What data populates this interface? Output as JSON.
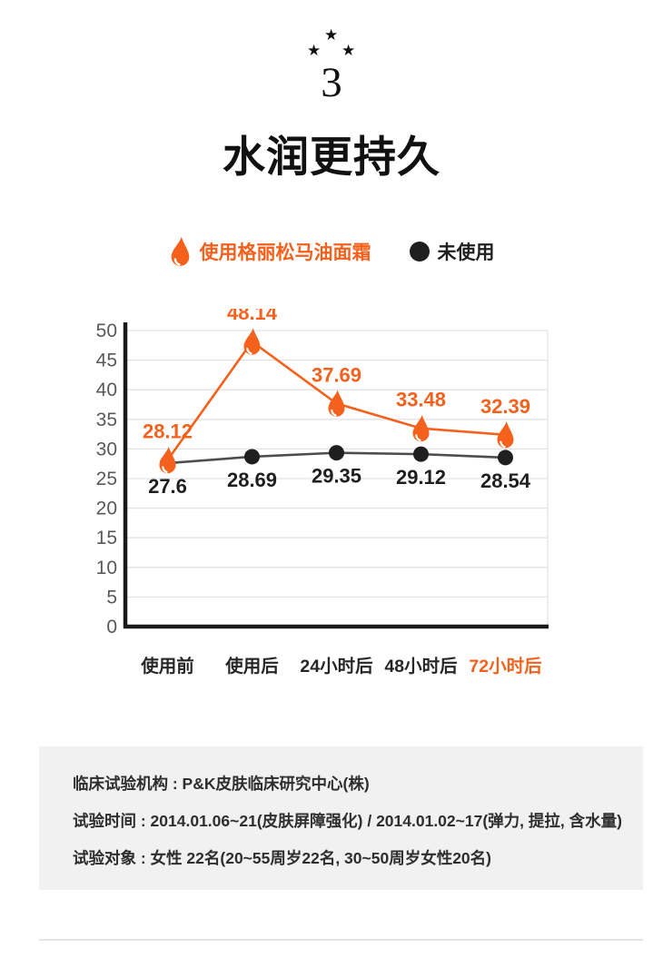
{
  "header": {
    "stars_icon": "★",
    "section_number": "3",
    "title": "水润更持久"
  },
  "legend": {
    "series1_label": "使用格丽松马油面霜",
    "series2_label": "未使用"
  },
  "chart_data": {
    "type": "line",
    "categories": [
      "使用前",
      "使用后",
      "24小时后",
      "48小时后",
      "72小时后"
    ],
    "series": [
      {
        "name": "使用格丽松马油面霜",
        "values": [
          28.12,
          48.14,
          37.69,
          33.48,
          32.39
        ],
        "color": "#f4611d",
        "label_color": "#f4611d",
        "marker": "droplet",
        "label_position": "above"
      },
      {
        "name": "未使用",
        "values": [
          27.6,
          28.69,
          29.35,
          29.12,
          28.54
        ],
        "color": "#4d4d4d",
        "label_color": "#1f1f1f",
        "marker": "circle",
        "label_position": "below"
      }
    ],
    "ylim": [
      0,
      50
    ],
    "ytick_step": 5,
    "grid": true,
    "legend_position": "top",
    "axis_color": "#1a1a1a",
    "grid_color": "#e3e3e3",
    "ytick_color": "#595959",
    "xtick_color": "#262626",
    "last_xtick_color": "#f4611d",
    "title": "",
    "xlabel": "",
    "ylabel": ""
  },
  "footer": {
    "lines": [
      "临床试验机构 : P&K皮肤临床研究中心(株)",
      "试验时间 : 2014.01.06~21(皮肤屏障强化) / 2014.01.02~17(弹力, 提拉, 含水量)",
      "试验对象 : 女性 22名(20~55周岁22名, 30~50周岁女性20名)"
    ]
  },
  "colors": {
    "accent": "#f4611d",
    "dark": "#1f1f1f",
    "footer_bg": "#f1f1f1",
    "divider": "#e3e3e3"
  }
}
